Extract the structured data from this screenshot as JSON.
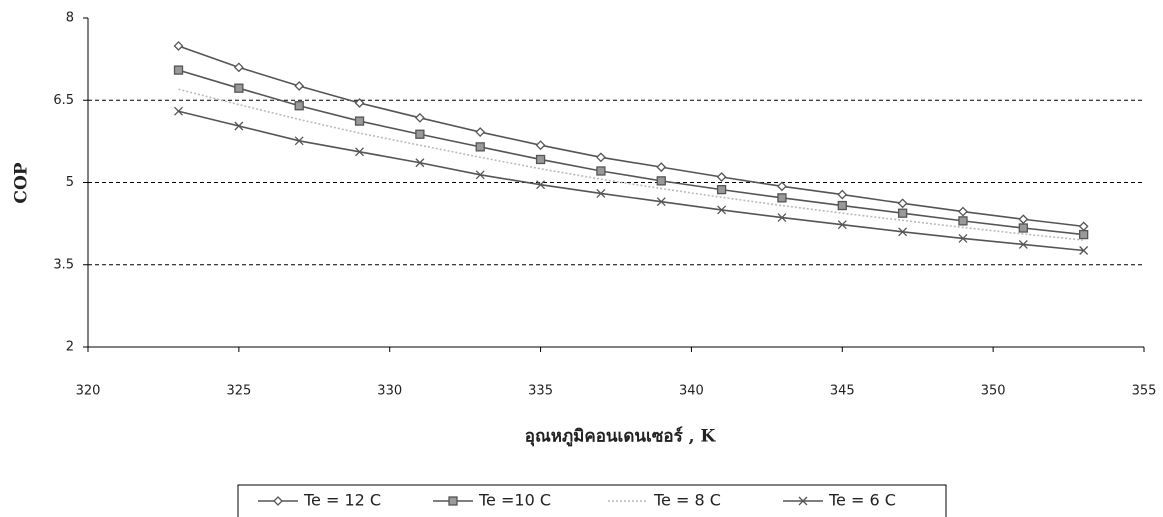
{
  "chart_data": {
    "type": "line",
    "x_label": "อุณหภูมิคอนเดนเซอร์ , K",
    "y_label": "COP",
    "x": [
      323,
      325,
      327,
      329,
      331,
      333,
      335,
      337,
      339,
      341,
      343,
      345,
      347,
      349,
      351,
      353
    ],
    "series": [
      {
        "name": "Te = 12 C",
        "color": "#555555",
        "marker": "diamond",
        "values": [
          7.49,
          7.1,
          6.76,
          6.45,
          6.18,
          5.92,
          5.68,
          5.46,
          5.28,
          5.1,
          4.93,
          4.78,
          4.62,
          4.47,
          4.33,
          4.2
        ]
      },
      {
        "name": "Te =10 C",
        "color": "#555555",
        "marker": "square",
        "values": [
          7.05,
          6.72,
          6.4,
          6.12,
          5.88,
          5.65,
          5.42,
          5.21,
          5.03,
          4.87,
          4.72,
          4.58,
          4.44,
          4.3,
          4.17,
          4.05
        ]
      },
      {
        "name": "Te = 8 C",
        "color": "#bbbbbb",
        "marker": "none",
        "values": [
          6.7,
          6.42,
          6.15,
          5.9,
          5.68,
          5.46,
          5.25,
          5.06,
          4.89,
          4.73,
          4.58,
          4.44,
          4.31,
          4.18,
          4.06,
          3.95
        ]
      },
      {
        "name": "Te = 6 C",
        "color": "#555555",
        "marker": "x",
        "values": [
          6.3,
          6.03,
          5.76,
          5.56,
          5.36,
          5.14,
          4.96,
          4.8,
          4.65,
          4.5,
          4.36,
          4.23,
          4.1,
          3.98,
          3.87,
          3.76
        ]
      }
    ],
    "xlim": [
      320,
      355
    ],
    "xticks": [
      320,
      325,
      330,
      335,
      340,
      345,
      350,
      355
    ],
    "ylim": [
      2,
      8
    ],
    "yticks": [
      2,
      3.5,
      5,
      6.5,
      8
    ],
    "grid": true,
    "legend": "bottom"
  }
}
